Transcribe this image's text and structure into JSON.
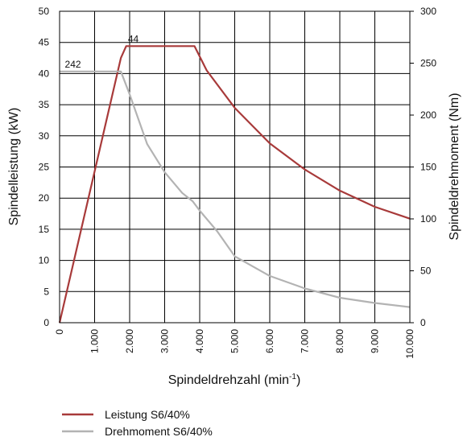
{
  "chart_data": {
    "type": "line",
    "title": "",
    "xlabel": "Spindeldrehzahl (min",
    "xlabel_sup": "-1",
    "xlabel_close": ")",
    "ylabel": "Spindelleistung (kW)",
    "ylabel_right": "Spindeldrehmoment (Nm)",
    "xlim": [
      0,
      10000
    ],
    "ylim": [
      0,
      50
    ],
    "ylim_right": [
      0,
      300
    ],
    "x_ticks": [
      0,
      1000,
      2000,
      3000,
      4000,
      5000,
      6000,
      7000,
      8000,
      9000,
      10000
    ],
    "x_tick_labels": [
      "0",
      "1.000",
      "2.000",
      "3.000",
      "4.000",
      "5.000",
      "6.000",
      "7.000",
      "8.000",
      "9.000",
      "10.000"
    ],
    "y_ticks": [
      "0",
      "5",
      "10",
      "15",
      "20",
      "25",
      "30",
      "35",
      "40",
      "45",
      "50"
    ],
    "y_right_ticks": [
      "0",
      "50",
      "100",
      "150",
      "200",
      "250",
      "300"
    ],
    "grid": true,
    "legend_position": "bottom-left",
    "series": [
      {
        "name": "Leistung S6/40%",
        "axis": "left",
        "color": "#a83a3a",
        "x": [
          0,
          1750,
          1900,
          3850,
          4200,
          5000,
          6000,
          7000,
          8000,
          9000,
          10000
        ],
        "values": [
          0,
          42.5,
          44.4,
          44.4,
          40.5,
          34.5,
          28.8,
          24.6,
          21.2,
          18.6,
          16.7
        ]
      },
      {
        "name": "Drehmoment S6/40%",
        "axis": "right",
        "color": "#b3b3b3",
        "x": [
          0,
          1750,
          2000,
          2500,
          3000,
          3500,
          3800,
          4000,
          4500,
          5000,
          6000,
          7000,
          8000,
          9000,
          10000
        ],
        "values": [
          242,
          242,
          220,
          172,
          145,
          125,
          117,
          108,
          88,
          64,
          45,
          33,
          24,
          19,
          15
        ]
      }
    ],
    "annotations": [
      {
        "text": "44",
        "x": 1950,
        "y": 44.4,
        "axis": "left"
      },
      {
        "text": "242",
        "x": 150,
        "y": 242,
        "axis": "right"
      }
    ]
  }
}
